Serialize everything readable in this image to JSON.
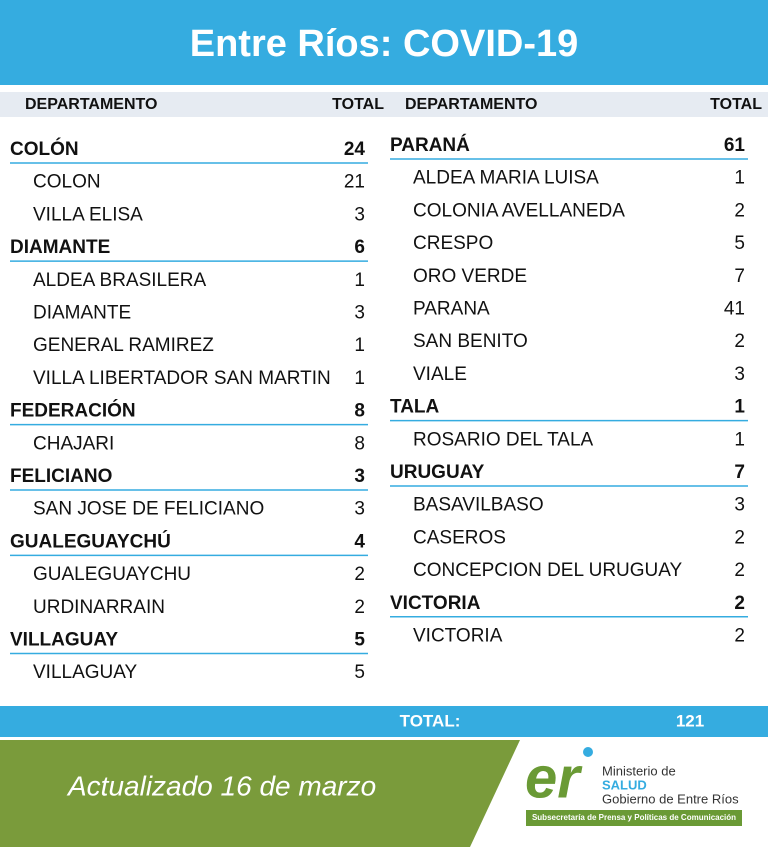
{
  "header": {
    "title": "Entre Ríos: COVID-19"
  },
  "table": {
    "columns": [
      {
        "department": "DEPARTAMENTO",
        "total": "TOTAL"
      },
      {
        "department": "DEPARTAMENTO",
        "total": "TOTAL"
      }
    ],
    "left": [
      {
        "name": "COLÓN",
        "total": 24,
        "localities": [
          {
            "name": "COLON",
            "total": 21
          },
          {
            "name": "VILLA ELISA",
            "total": 3
          }
        ]
      },
      {
        "name": "DIAMANTE",
        "total": 6,
        "localities": [
          {
            "name": "ALDEA BRASILERA",
            "total": 1
          },
          {
            "name": "DIAMANTE",
            "total": 3
          },
          {
            "name": "GENERAL RAMIREZ",
            "total": 1
          },
          {
            "name": "VILLA LIBERTADOR SAN MARTIN",
            "total": 1
          }
        ]
      },
      {
        "name": "FEDERACIÓN",
        "total": 8,
        "localities": [
          {
            "name": "CHAJARI",
            "total": 8
          }
        ]
      },
      {
        "name": "FELICIANO",
        "total": 3,
        "localities": [
          {
            "name": "SAN JOSE DE FELICIANO",
            "total": 3
          }
        ]
      },
      {
        "name": "GUALEGUAYCHÚ",
        "total": 4,
        "localities": [
          {
            "name": "GUALEGUAYCHU",
            "total": 2
          },
          {
            "name": "URDINARRAIN",
            "total": 2
          }
        ]
      },
      {
        "name": "VILLAGUAY",
        "total": 5,
        "localities": [
          {
            "name": "VILLAGUAY",
            "total": 5
          }
        ]
      }
    ],
    "right": [
      {
        "name": "PARANÁ",
        "total": 61,
        "localities": [
          {
            "name": "ALDEA MARIA LUISA",
            "total": 1
          },
          {
            "name": "COLONIA AVELLANEDA",
            "total": 2
          },
          {
            "name": "CRESPO",
            "total": 5
          },
          {
            "name": "ORO VERDE",
            "total": 7
          },
          {
            "name": "PARANA",
            "total": 41
          },
          {
            "name": "SAN BENITO",
            "total": 2
          },
          {
            "name": "VIALE",
            "total": 3
          }
        ]
      },
      {
        "name": "TALA",
        "total": 1,
        "localities": [
          {
            "name": "ROSARIO DEL TALA",
            "total": 1
          }
        ]
      },
      {
        "name": "URUGUAY",
        "total": 7,
        "localities": [
          {
            "name": "BASAVILBASO",
            "total": 3
          },
          {
            "name": "CASEROS",
            "total": 2
          },
          {
            "name": "CONCEPCION DEL URUGUAY",
            "total": 2
          }
        ]
      },
      {
        "name": "VICTORIA",
        "total": 2,
        "localities": [
          {
            "name": "VICTORIA",
            "total": 2
          }
        ]
      }
    ]
  },
  "summary": {
    "label": "TOTAL:",
    "value": 121
  },
  "footer": {
    "updated": "Actualizado 16 de marzo",
    "logo": {
      "mark": "er",
      "line1": "Ministerio de",
      "line2": "SALUD",
      "line3": "Gobierno de Entre Ríos",
      "banner": "Subsecretaría de Prensa y Políticas de Comunicación"
    }
  }
}
